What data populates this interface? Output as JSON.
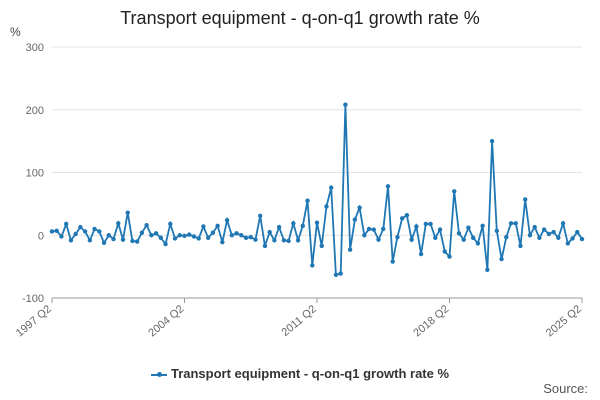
{
  "chart_data": {
    "type": "line",
    "title": "Transport equipment - q-on-q1 growth rate %",
    "ylabel": "%",
    "xlabel": "",
    "ylim": [
      -100,
      300
    ],
    "yticks": [
      -100,
      0,
      100,
      200,
      300
    ],
    "xtick_labels": [
      "1997 Q2",
      "2004 Q2",
      "2011 Q2",
      "2018 Q2",
      "2025 Q2"
    ],
    "grid": "horizontal",
    "legend": "bottom",
    "color": "#1f77b4",
    "series": [
      {
        "name": "Transport equipment - q-on-q1 growth rate %",
        "x_start": "1997 Q2",
        "values": [
          6,
          7,
          -2,
          18,
          -8,
          2,
          13,
          6,
          -8,
          10,
          6,
          -12,
          0,
          -6,
          19,
          -7,
          36,
          -9,
          -10,
          4,
          16,
          0,
          3,
          -4,
          -14,
          18,
          -5,
          0,
          -1,
          1,
          -2,
          -5,
          14,
          -4,
          4,
          15,
          -11,
          24,
          0,
          3,
          0,
          -4,
          -3,
          -7,
          31,
          -17,
          5,
          -8,
          13,
          -8,
          -9,
          19,
          -8,
          15,
          55,
          -48,
          20,
          -17,
          46,
          76,
          -63,
          -61,
          208,
          -23,
          25,
          44,
          0,
          10,
          9,
          -7,
          10,
          78,
          -42,
          -3,
          27,
          32,
          -7,
          14,
          -30,
          18,
          18,
          -4,
          9,
          -26,
          -34,
          70,
          3,
          -7,
          12,
          -4,
          -13,
          15,
          -55,
          150,
          7,
          -38,
          -3,
          19,
          19,
          -17,
          57,
          0,
          13,
          -4,
          9,
          2,
          5,
          -4,
          19,
          -13,
          -5,
          5,
          -6
        ]
      }
    ]
  },
  "source_label": "Source:"
}
